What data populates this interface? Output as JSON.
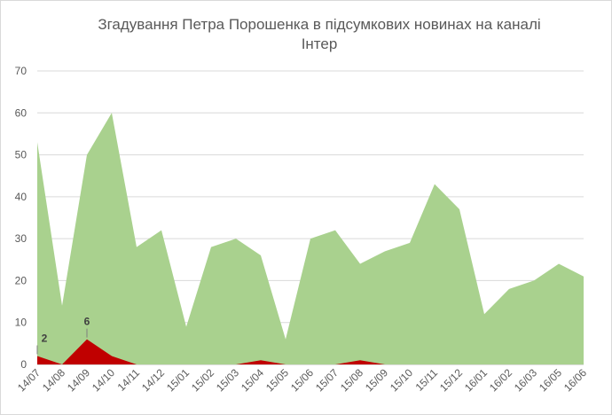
{
  "chart_data": {
    "type": "area",
    "title_line1": "Згадування  Петра Порошенка  в підсумкових новинах на каналі",
    "title_line2": "Інтер",
    "categories": [
      "14/07",
      "14/08",
      "14/09",
      "14/10",
      "14/11",
      "14/12",
      "15/01",
      "15/02",
      "15/03",
      "15/04",
      "15/05",
      "15/06",
      "15/07",
      "15/08",
      "15/09",
      "15/10",
      "15/11",
      "15/12",
      "16/01",
      "16/02",
      "16/03",
      "16/05",
      "16/06"
    ],
    "ylim": [
      0,
      70
    ],
    "yticks": [
      0,
      10,
      20,
      30,
      40,
      50,
      60,
      70
    ],
    "grid": true,
    "series": [
      {
        "values": [
          53,
          14,
          50,
          60,
          28,
          32,
          9,
          28,
          30,
          26,
          6,
          30,
          32,
          24,
          27,
          29,
          43,
          37,
          12,
          18,
          20,
          24,
          21
        ],
        "color": "#a9d18e"
      },
      {
        "values": [
          2,
          0,
          6,
          2,
          0,
          0,
          0,
          0,
          0,
          1,
          0,
          0,
          0,
          1,
          0,
          0,
          0,
          0,
          0,
          0,
          0,
          0,
          0
        ],
        "color": "#c00000"
      }
    ],
    "data_labels": [
      {
        "series": 1,
        "index": 0,
        "text": "2"
      },
      {
        "series": 1,
        "index": 2,
        "text": "6"
      }
    ]
  }
}
